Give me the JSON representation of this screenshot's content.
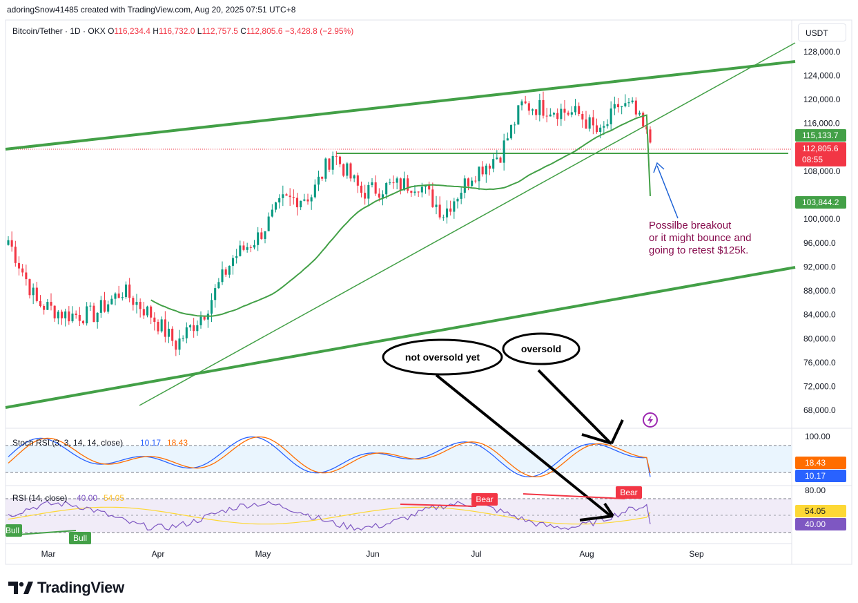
{
  "header": {
    "caption": "adoringSnow41485 created with TradingView.com, Aug 20, 2025 07:51 UTC+8"
  },
  "symbol": {
    "name": "Bitcoin/Tether · 1D · OKX",
    "open_label": "O",
    "open": "116,234.4",
    "high_label": "H",
    "high": "116,732.0",
    "low_label": "L",
    "low": "112,757.5",
    "close_label": "C",
    "close": "112,805.6",
    "change": "−3,428.8 (−2.95%)"
  },
  "currency": "USDT",
  "price_axis": {
    "ticks": [
      "128,000.0",
      "124,000.0",
      "120,000.0",
      "116,000.0",
      "108,000.0",
      "100,000.0",
      "96,000.0",
      "92,000.0",
      "88,000.0",
      "84,000.0",
      "80,000.0",
      "76,000.0",
      "72,000.0",
      "68,000.0"
    ],
    "tick_values": [
      128000,
      124000,
      120000,
      116000,
      108000,
      100000,
      96000,
      92000,
      88000,
      84000,
      80000,
      76000,
      72000,
      68000
    ],
    "badge_ma_short": "115,133.7",
    "badge_last": "112,805.6",
    "badge_countdown": "08:55",
    "badge_ma_long": "103,844.2"
  },
  "time_axis": {
    "labels": [
      "Mar",
      "Apr",
      "May",
      "Jun",
      "Jul",
      "Aug",
      "Sep"
    ]
  },
  "annotations": {
    "breakout_note": [
      "Possilbe breakout",
      "or it might bounce and",
      "going to retest $125k."
    ],
    "bubble_not_oversold": "not oversold yet",
    "bubble_oversold": "oversold",
    "bear1": "Bear",
    "bear2": "Bear",
    "bull1": "Bull",
    "bull2": "Bull"
  },
  "stoch_rsi": {
    "title": "Stoch RSI (3, 3, 14, 14, close)",
    "k": "10.17",
    "d": "18.43",
    "axis_top": "100.00",
    "badge_d": "18.43",
    "badge_k": "10.17"
  },
  "rsi": {
    "title": "RSI (14, close)",
    "rsi": "40.00",
    "ma": "54.05",
    "axis_top": "80.00",
    "badge_ma": "54.05",
    "badge_rsi": "40.00"
  },
  "brand": "TradingView",
  "colors": {
    "up": "#089981",
    "down": "#f23645",
    "trend": "#43a047",
    "ma": "#43a047",
    "stoch_k": "#2962ff",
    "stoch_d": "#ff6d00",
    "rsi": "#7e57c2",
    "rsi_ma": "#fdd835",
    "annotation_text": "#880e4f",
    "arrow_blue": "#1e63d6"
  },
  "chart_data": {
    "type": "candlestick",
    "title": "Bitcoin/Tether · 1D · OKX",
    "ylim": [
      66000,
      131000
    ],
    "x": [
      "2025-02-20",
      "2025-02-28",
      "2025-03-08",
      "2025-03-16",
      "2025-03-24",
      "2025-04-01",
      "2025-04-08",
      "2025-04-16",
      "2025-04-24",
      "2025-05-01",
      "2025-05-08",
      "2025-05-16",
      "2025-05-22",
      "2025-05-30",
      "2025-06-07",
      "2025-06-15",
      "2025-06-22",
      "2025-06-30",
      "2025-07-08",
      "2025-07-14",
      "2025-07-22",
      "2025-07-30",
      "2025-08-05",
      "2025-08-10",
      "2025-08-14",
      "2025-08-19"
    ],
    "close": [
      96500,
      86000,
      84000,
      84000,
      88000,
      84000,
      79000,
      84500,
      93500,
      97000,
      103000,
      104000,
      111000,
      104500,
      105500,
      106000,
      101000,
      107500,
      111000,
      119000,
      118500,
      117500,
      114000,
      119000,
      118500,
      112805.6
    ],
    "ma_short_last": 115133.7,
    "ma_long_last": 103844.2,
    "horizontal_level": 111000,
    "stoch_rsi": {
      "k_last": 10.17,
      "d_last": 18.43,
      "upper": 80,
      "lower": 20
    },
    "rsi": {
      "rsi_last": 40.0,
      "ma_last": 54.05,
      "upper": 70,
      "lower": 30
    }
  }
}
